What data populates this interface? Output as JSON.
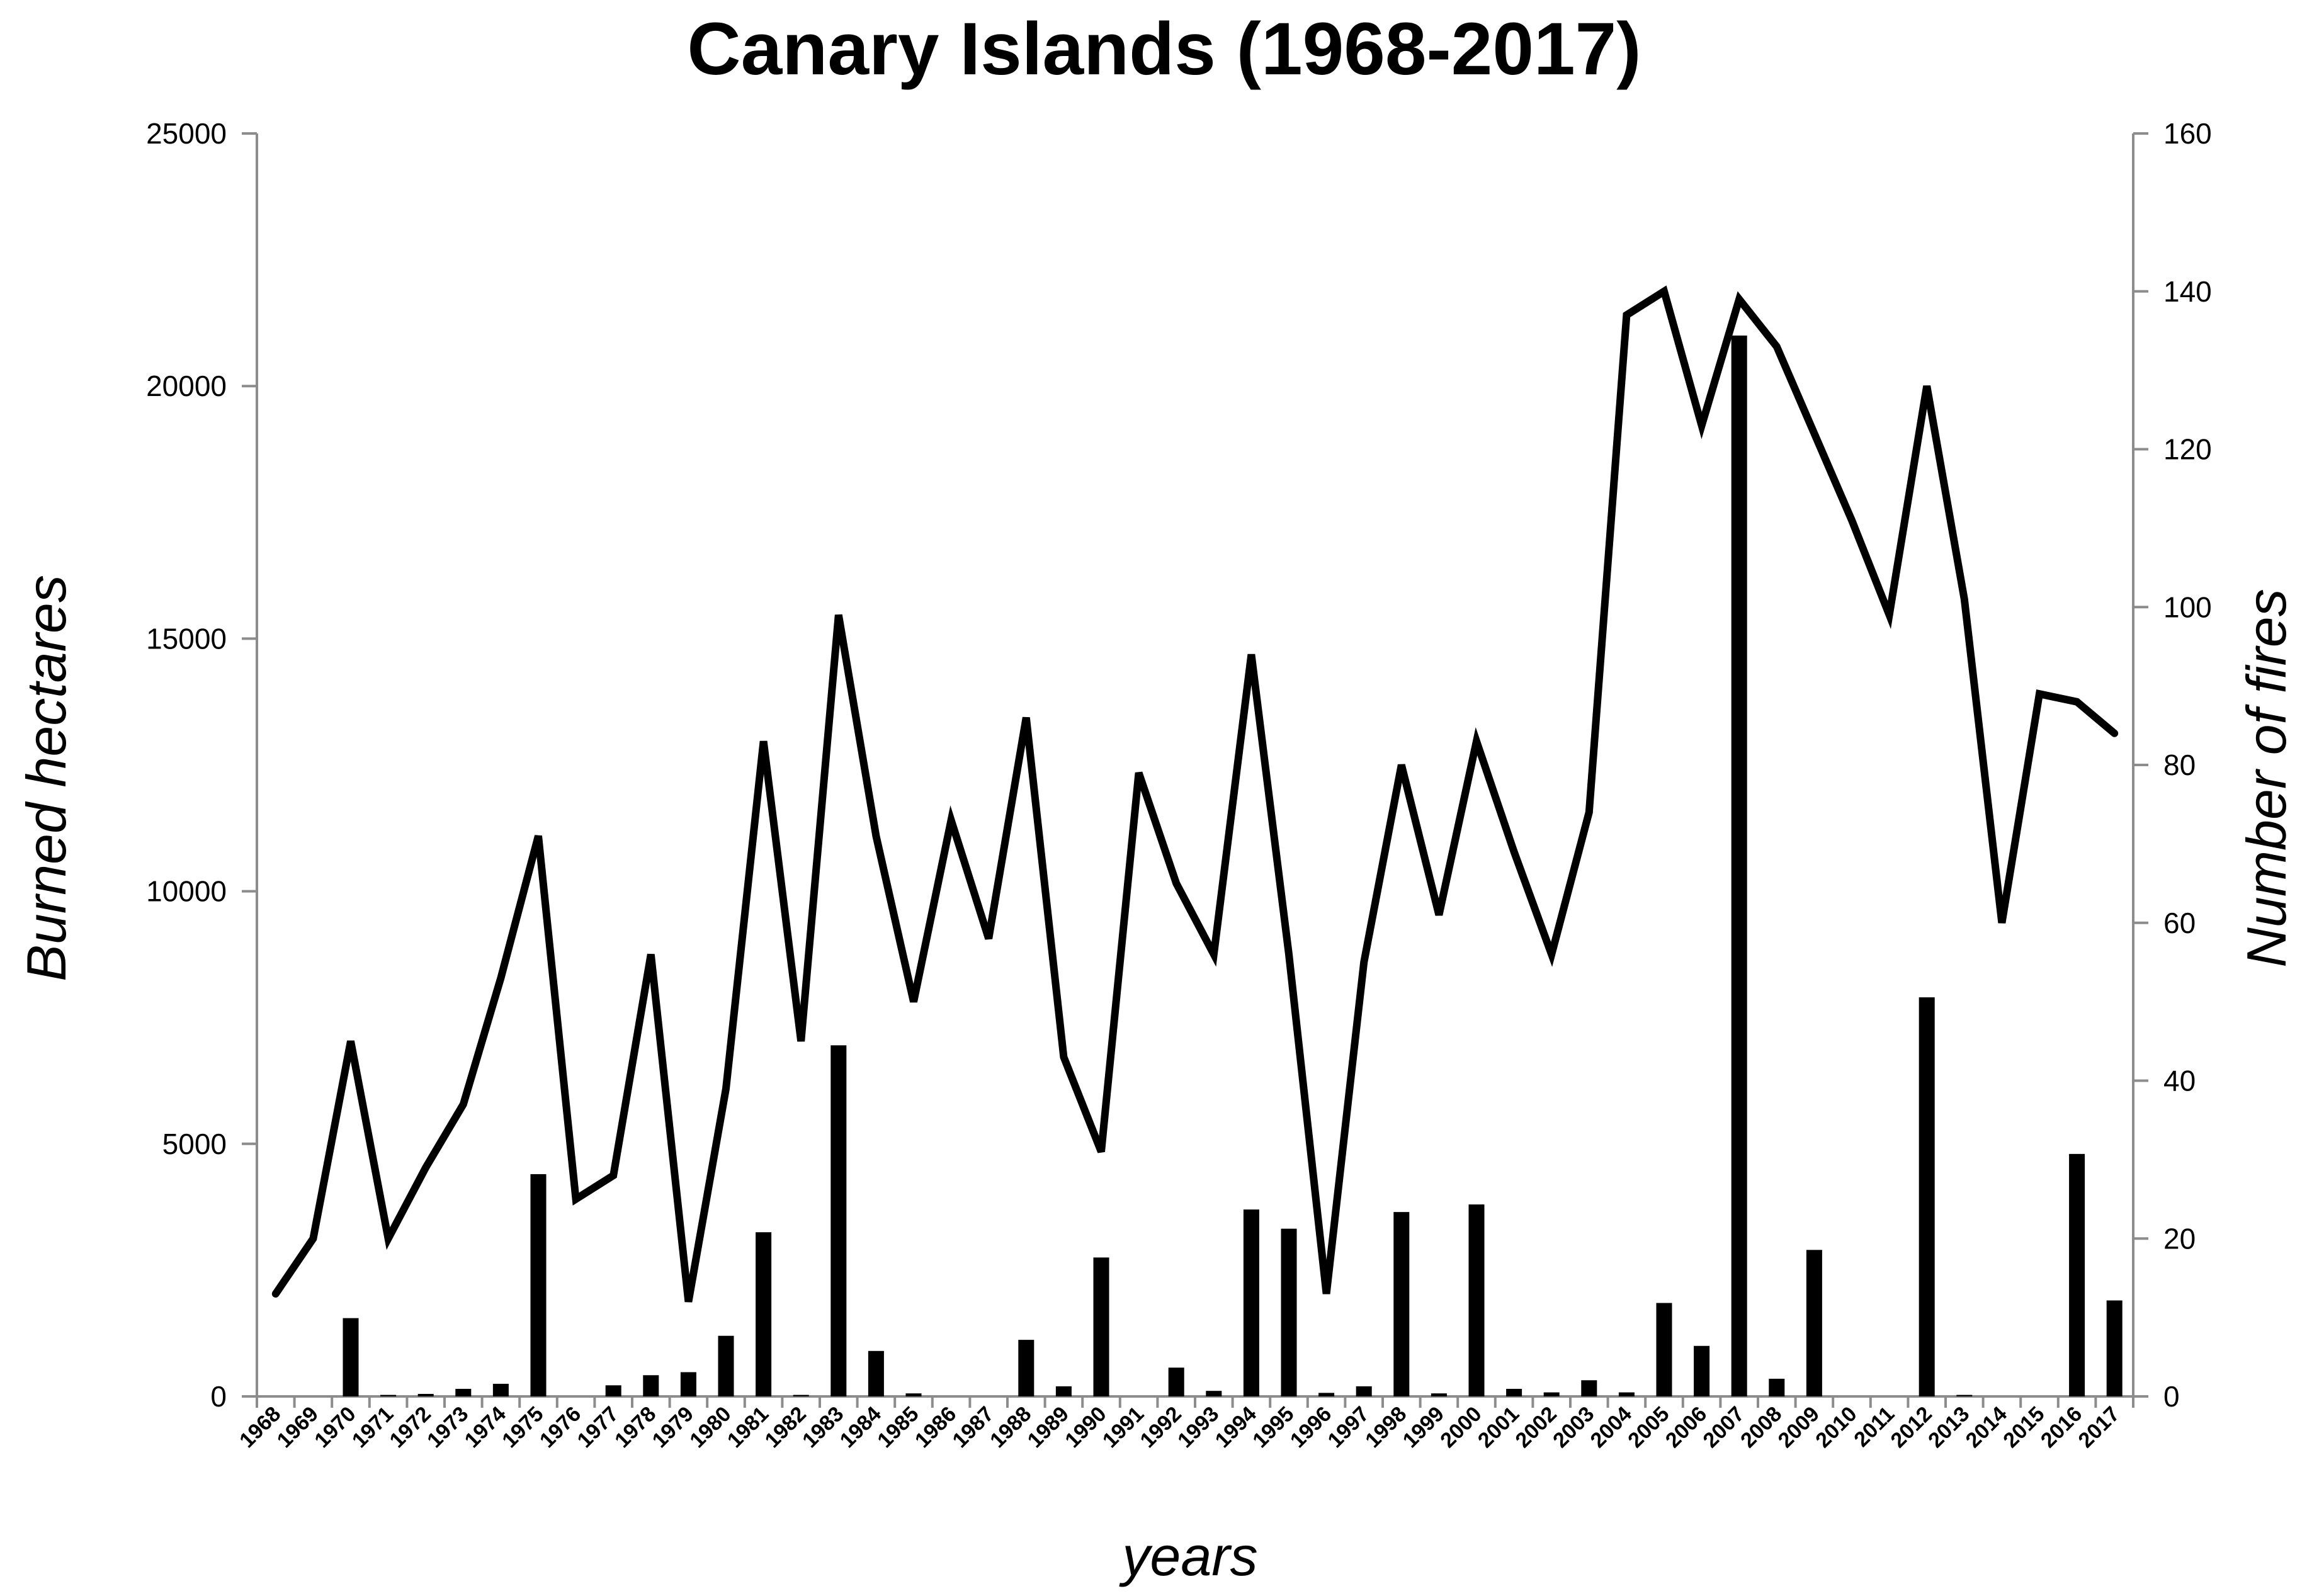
{
  "chart_data": {
    "type": "bar",
    "title": "Canary Islands (1968-2017)",
    "xlabel": "years",
    "ylabel": "Burned hectares",
    "y2label": "Number of fires",
    "ylim": [
      0,
      25000
    ],
    "y2lim": [
      0,
      160
    ],
    "yticks": [
      "0",
      "5000",
      "10000",
      "15000",
      "20000",
      "25000"
    ],
    "y2ticks": [
      "0",
      "20",
      "40",
      "60",
      "80",
      "100",
      "120",
      "140",
      "160"
    ],
    "grid": false,
    "legend": "none",
    "categories": [
      "1968",
      "1969",
      "1970",
      "1971",
      "1972",
      "1973",
      "1974",
      "1975",
      "1976",
      "1977",
      "1978",
      "1979",
      "1980",
      "1981",
      "1982",
      "1983",
      "1984",
      "1985",
      "1986",
      "1987",
      "1988",
      "1989",
      "1990",
      "1991",
      "1992",
      "1993",
      "1994",
      "1995",
      "1996",
      "1997",
      "1998",
      "1999",
      "2000",
      "2001",
      "2002",
      "2003",
      "2004",
      "2005",
      "2006",
      "2007",
      "2008",
      "2009",
      "2010",
      "2011",
      "2012",
      "2013",
      "2014",
      "2015",
      "2016",
      "2017"
    ],
    "series": [
      {
        "type": "bar",
        "axis": "left",
        "values": [
          0,
          0,
          1550,
          30,
          50,
          150,
          250,
          4400,
          0,
          220,
          420,
          480,
          1200,
          3250,
          30,
          6950,
          900,
          60,
          0,
          0,
          1120,
          200,
          2750,
          0,
          570,
          110,
          3700,
          3320,
          70,
          200,
          3650,
          60,
          3800,
          150,
          80,
          320,
          80,
          1850,
          1000,
          21000,
          350,
          2900,
          0,
          0,
          7900,
          30,
          0,
          0,
          4800,
          1900
        ],
        "color": "#000000"
      },
      {
        "type": "line",
        "axis": "right",
        "values": [
          13,
          20,
          45,
          20,
          29,
          37,
          53,
          71,
          25,
          28,
          56,
          12,
          39,
          83,
          45,
          99,
          71,
          50,
          73,
          58,
          86,
          43,
          31,
          79,
          65,
          56,
          94,
          56,
          13,
          55,
          80,
          61,
          83,
          69,
          56,
          74,
          137,
          140,
          123,
          139,
          133,
          122,
          111,
          99,
          128,
          101,
          60,
          89,
          88,
          84
        ],
        "color": "#000000"
      }
    ]
  }
}
